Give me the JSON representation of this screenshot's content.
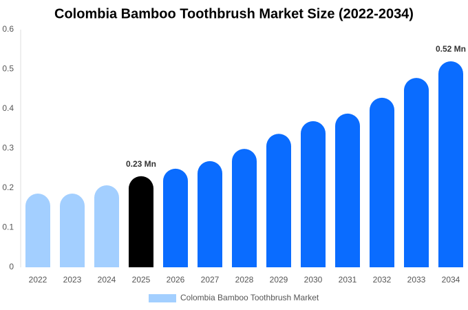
{
  "chart_data": {
    "type": "bar",
    "title": "Colombia Bamboo Toothbrush Market Size (2022-2034)",
    "categories": [
      "2022",
      "2023",
      "2024",
      "2025",
      "2026",
      "2027",
      "2028",
      "2029",
      "2030",
      "2031",
      "2032",
      "2033",
      "2034"
    ],
    "series": [
      {
        "name": "Colombia Bamboo Toothbrush Market",
        "color": "#a3cfff",
        "values": [
          0.186,
          0.186,
          0.207,
          0.23,
          0.249,
          0.268,
          0.299,
          0.337,
          0.369,
          0.388,
          0.428,
          0.478,
          0.52
        ],
        "value_labels": [
          null,
          null,
          null,
          "0.23 Mn",
          null,
          null,
          null,
          null,
          null,
          null,
          null,
          null,
          "0.52 Mn"
        ],
        "colors": [
          "#a3cfff",
          "#a3cfff",
          "#a3cfff",
          "#000000",
          "#0a6cff",
          "#0a6cff",
          "#0a6cff",
          "#0a6cff",
          "#0a6cff",
          "#0a6cff",
          "#0a6cff",
          "#0a6cff",
          "#0a6cff"
        ]
      }
    ],
    "ylim": [
      0,
      0.6
    ],
    "yticks": [
      0,
      0.1,
      0.2,
      0.3,
      0.4,
      0.5,
      0.6
    ],
    "grid": false
  }
}
